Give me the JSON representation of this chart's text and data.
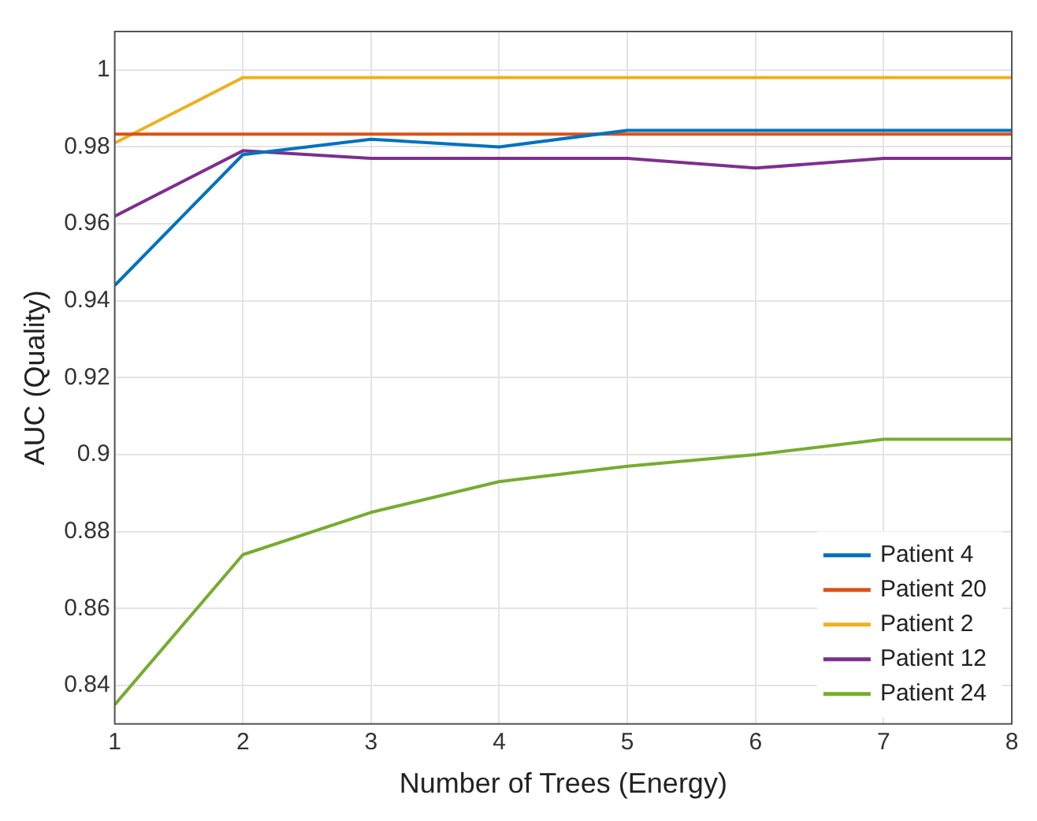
{
  "chart_data": {
    "type": "line",
    "xlabel": "Number of Trees (Energy)",
    "ylabel": "AUC (Quality)",
    "x": [
      1,
      2,
      3,
      4,
      5,
      6,
      7,
      8
    ],
    "xlim": [
      1,
      8
    ],
    "xticks": [
      1,
      2,
      3,
      4,
      5,
      6,
      7,
      8
    ],
    "ylim": [
      0.83,
      1.01
    ],
    "yticks": [
      0.84,
      0.86,
      0.88,
      0.9,
      0.92,
      0.94,
      0.96,
      0.98,
      1
    ],
    "grid": true,
    "legend": "bottom right",
    "marker": "none",
    "line_style": "solid",
    "series": [
      {
        "name": "Patient 4",
        "color": "#0072bd",
        "values": [
          0.944,
          0.978,
          0.982,
          0.98,
          0.9843,
          0.9843,
          0.9843,
          0.9843
        ]
      },
      {
        "name": "Patient 20",
        "color": "#d95319",
        "values": [
          0.9833,
          0.9833,
          0.9833,
          0.9833,
          0.9833,
          0.9833,
          0.9833,
          0.9833
        ]
      },
      {
        "name": "Patient 2",
        "color": "#edb120",
        "values": [
          0.981,
          0.998,
          0.998,
          0.998,
          0.998,
          0.998,
          0.998,
          0.998
        ]
      },
      {
        "name": "Patient 12",
        "color": "#7e2f8e",
        "values": [
          0.962,
          0.979,
          0.977,
          0.977,
          0.977,
          0.9745,
          0.977,
          0.977
        ]
      },
      {
        "name": "Patient 24",
        "color": "#77ac30",
        "values": [
          0.835,
          0.874,
          0.885,
          0.893,
          0.897,
          0.9,
          0.904,
          0.904
        ]
      }
    ]
  }
}
